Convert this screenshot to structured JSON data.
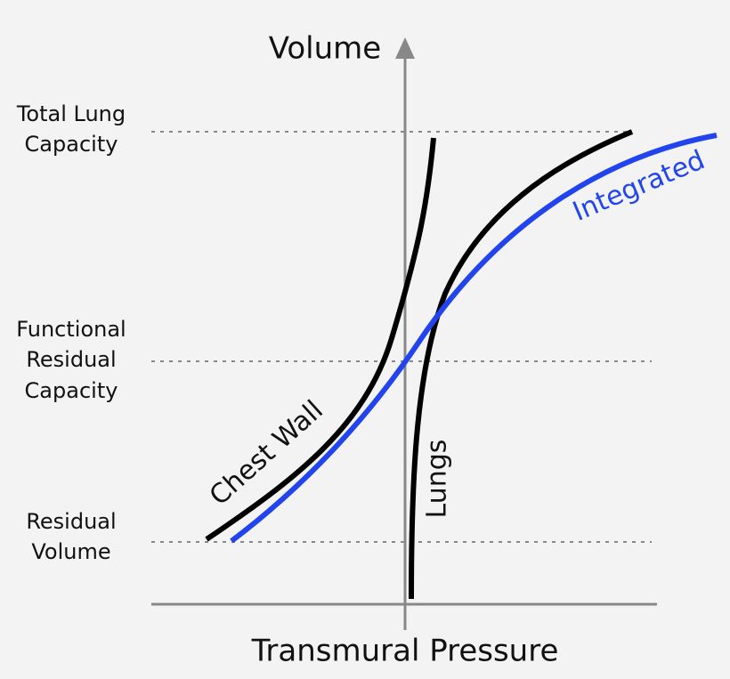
{
  "axes": {
    "y_label": "Volume",
    "x_label": "Transmural Pressure"
  },
  "levels": [
    {
      "lines": [
        "Total Lung",
        "Capacity"
      ]
    },
    {
      "lines": [
        "Functional",
        "Residual",
        "Capacity"
      ]
    },
    {
      "lines": [
        "Residual",
        "Volume"
      ]
    }
  ],
  "curves": {
    "chest_wall": "Chest Wall",
    "lungs": "Lungs",
    "integrated": "Integrated"
  }
}
